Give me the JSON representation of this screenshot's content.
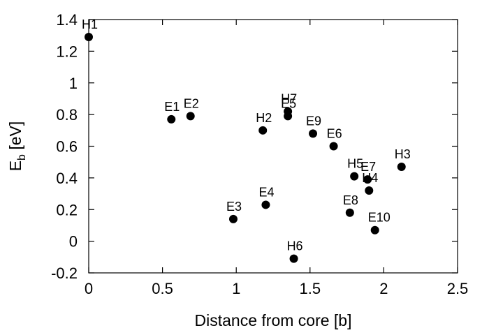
{
  "chart_data": {
    "type": "scatter",
    "title": "",
    "xlabel": "Distance from core [b]",
    "ylabel_main": "E",
    "ylabel_sub": "b",
    "ylabel_unit": " [eV]",
    "xlim": [
      0,
      2.5
    ],
    "ylim": [
      -0.2,
      1.4
    ],
    "xticks": [
      0,
      0.5,
      1,
      1.5,
      2,
      2.5
    ],
    "yticks": [
      -0.2,
      0,
      0.2,
      0.4,
      0.6,
      0.8,
      1,
      1.2,
      1.4
    ],
    "xtick_labels": [
      "0",
      "0.5",
      "1",
      "1.5",
      "2",
      "2.5"
    ],
    "ytick_labels": [
      "-0.2",
      "0",
      "0.2",
      "0.4",
      "0.6",
      "0.8",
      "1",
      "1.2",
      "1.4"
    ],
    "grid": false,
    "legend": false,
    "marker_color": "#000000",
    "points": [
      {
        "label": "H1",
        "x": 0.0,
        "y": 1.29
      },
      {
        "label": "E1",
        "x": 0.56,
        "y": 0.77
      },
      {
        "label": "E2",
        "x": 0.69,
        "y": 0.79
      },
      {
        "label": "E3",
        "x": 0.98,
        "y": 0.14
      },
      {
        "label": "H2",
        "x": 1.18,
        "y": 0.7
      },
      {
        "label": "E4",
        "x": 1.2,
        "y": 0.23
      },
      {
        "label": "H7",
        "x": 1.35,
        "y": 0.82
      },
      {
        "label": "E5",
        "x": 1.35,
        "y": 0.79
      },
      {
        "label": "H6",
        "x": 1.39,
        "y": -0.11
      },
      {
        "label": "E9",
        "x": 1.52,
        "y": 0.68
      },
      {
        "label": "E6",
        "x": 1.66,
        "y": 0.6
      },
      {
        "label": "E8",
        "x": 1.77,
        "y": 0.18
      },
      {
        "label": "H5",
        "x": 1.8,
        "y": 0.41
      },
      {
        "label": "E7",
        "x": 1.89,
        "y": 0.39
      },
      {
        "label": "H4",
        "x": 1.9,
        "y": 0.32
      },
      {
        "label": "E10",
        "x": 1.94,
        "y": 0.07
      },
      {
        "label": "H3",
        "x": 2.12,
        "y": 0.47
      }
    ]
  }
}
